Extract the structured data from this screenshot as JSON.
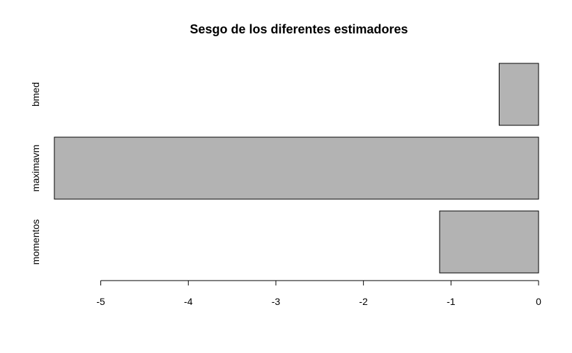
{
  "chart_data": {
    "type": "bar",
    "orientation": "horizontal",
    "title": "Sesgo de los diferentes estimadores",
    "xlabel": "",
    "ylabel": "",
    "categories": [
      "momentos",
      "maximavm",
      "bmed"
    ],
    "values": [
      -1.13,
      -5.53,
      -0.45
    ],
    "xlim": [
      -5.53,
      0
    ],
    "x_ticks": [
      -5,
      -4,
      -3,
      -2,
      -1,
      0
    ],
    "x_tick_labels": [
      "-5",
      "-4",
      "-3",
      "-2",
      "-1",
      "0"
    ],
    "grid": false,
    "legend": "none",
    "bar_color": "#b3b3b3",
    "bar_border_color": "#000000"
  }
}
